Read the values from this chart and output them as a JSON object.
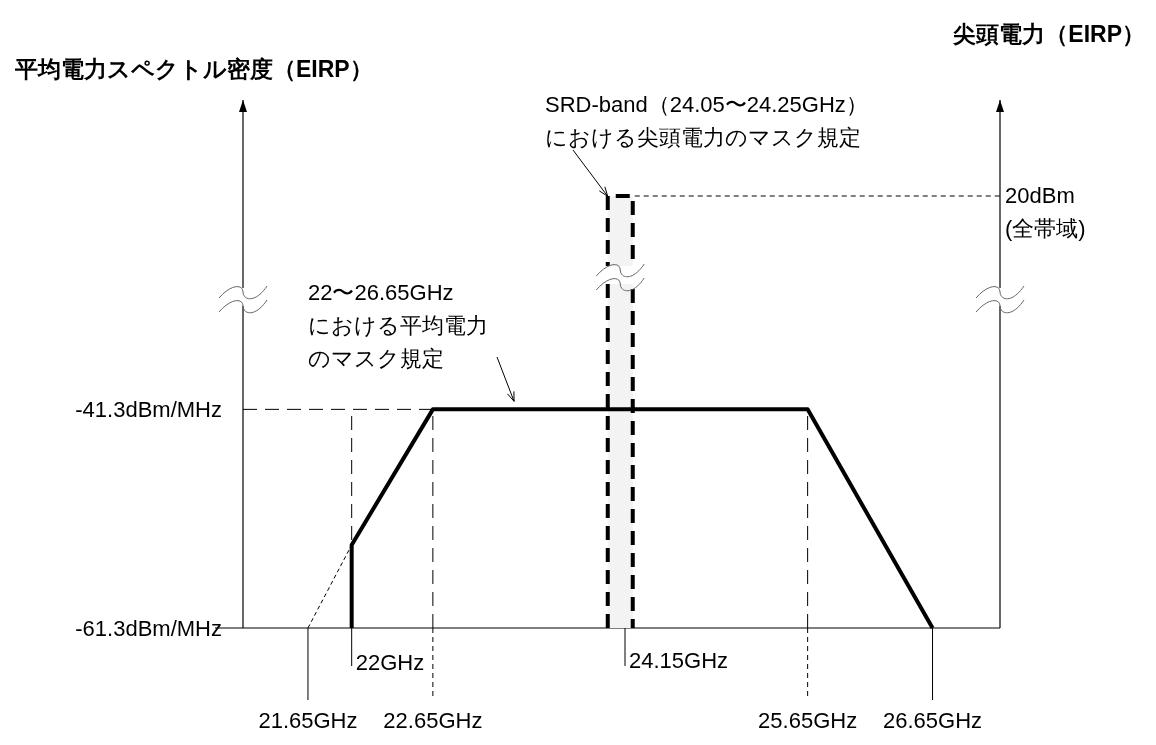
{
  "chart_data": {
    "type": "line",
    "ylabel": "平均電力スペクトル密度（EIRP）",
    "y2label": "尖頭電力（EIRP）",
    "xlim": [
      21.13,
      27.19
    ],
    "xticks": [
      {
        "value": 21.65,
        "label": "21.65GHz"
      },
      {
        "value": 22.65,
        "label": "22.65GHz"
      },
      {
        "value": 25.65,
        "label": "25.65GHz"
      },
      {
        "value": 26.65,
        "label": "26.65GHz"
      }
    ],
    "ylim": [
      -61.3,
      -13
    ],
    "yticks": [
      {
        "value": -41.3,
        "label": "-41.3dBm/MHz"
      },
      {
        "value": -61.3,
        "label": "-61.3dBm/MHz"
      }
    ],
    "series": [
      {
        "color": "#000000",
        "x": [
          22,
          22,
          22.65,
          25.65,
          26.65
        ],
        "values": [
          -61.3,
          -53.7,
          -41.3,
          -41.3,
          -61.3
        ],
        "line_style": "solid"
      },
      {
        "color": "#000000",
        "x": [
          21.65,
          22
        ],
        "values": [
          -61.3,
          -53.7
        ],
        "line_style": "dotted"
      }
    ],
    "bands": [
      {
        "axis": "x",
        "from": 24.05,
        "to": 24.25,
        "color": "#f3f3f3"
      }
    ],
    "ref_lines": [
      {
        "axis": "y",
        "value": -41.3,
        "line_style": "dashed"
      },
      {
        "axis": "x",
        "value": 22,
        "line_style": "dashed"
      },
      {
        "axis": "x",
        "value": 22.65,
        "line_style": "dashed"
      },
      {
        "axis": "x",
        "value": 25.65,
        "line_style": "dashed"
      }
    ],
    "annotations": [
      {
        "text": "SRD-band（24.05〜24.25GHz）における尖頭電力のマスク規定",
        "x": 24.05,
        "y": -22
      },
      {
        "text": "22〜26.65GHzにおける平均電力のマスク規定",
        "x": 23.3,
        "y": -41.3
      },
      "20dBm(全帯域)",
      {
        "text": "22GHz",
        "x": 22,
        "y": -61.3
      },
      "24.15GHz"
    ],
    "grid": false,
    "marker": "none"
  }
}
